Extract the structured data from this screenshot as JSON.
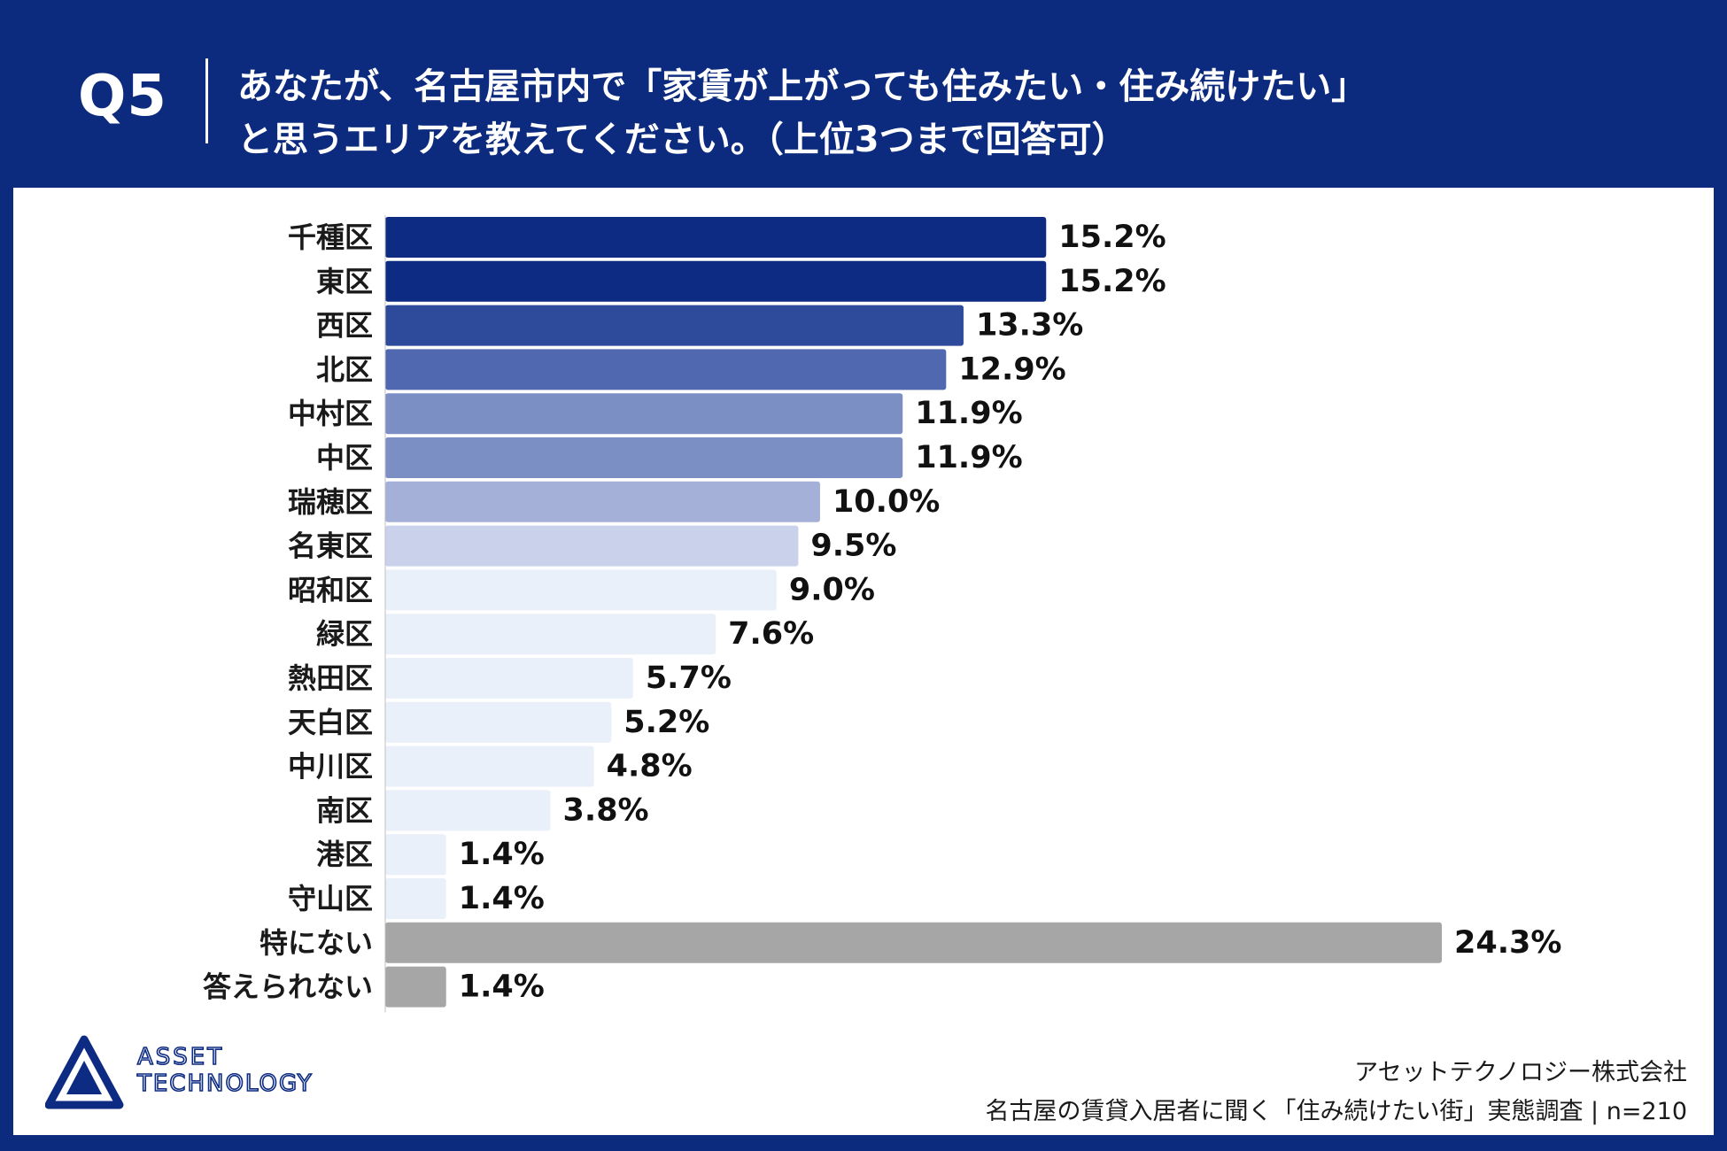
{
  "header": {
    "question_no": "Q5",
    "question_line1": "あなたが、名古屋市内で「家賃が上がっても住みたい・住み続けたい」",
    "question_line2": "と思うエリアを教えてください。（上位3つまで回答可）"
  },
  "logo": {
    "line1": "ASSET",
    "line2": "TECHNOLOGY"
  },
  "footer": {
    "company": "アセットテクノロジー株式会社",
    "survey": "名古屋の賃貸入居者に聞く「住み続けたい街」実態調査 | n=210"
  },
  "chart_data": {
    "type": "bar",
    "orientation": "horizontal",
    "title": "",
    "xlabel": "",
    "ylabel": "",
    "unit": "%",
    "categories": [
      "千種区",
      "東区",
      "西区",
      "北区",
      "中村区",
      "中区",
      "瑞穂区",
      "名東区",
      "昭和区",
      "緑区",
      "熱田区",
      "天白区",
      "中川区",
      "南区",
      "港区",
      "守山区",
      "特にない",
      "答えられない"
    ],
    "values": [
      15.2,
      15.2,
      13.3,
      12.9,
      11.9,
      11.9,
      10.0,
      9.5,
      9.0,
      7.6,
      5.7,
      5.2,
      4.8,
      3.8,
      1.4,
      1.4,
      24.3,
      1.4
    ],
    "value_labels": [
      "15.2%",
      "15.2%",
      "13.3%",
      "12.9%",
      "11.9%",
      "11.9%",
      "10.0%",
      "9.5%",
      "9.0%",
      "7.6%",
      "5.7%",
      "5.2%",
      "4.8%",
      "3.8%",
      "1.4%",
      "1.4%",
      "24.3%",
      "1.4%"
    ],
    "colors": [
      "#0d2b82",
      "#0d2b82",
      "#2e4a9a",
      "#5068b0",
      "#7b8fc4",
      "#7b8fc4",
      "#a4b0d8",
      "#c9d2ea",
      "#eaf0fa",
      "#eaf0fa",
      "#eaf0fa",
      "#eaf0fa",
      "#eaf0fa",
      "#eaf0fa",
      "#eaf0fa",
      "#eaf0fa",
      "#a6a6a6",
      "#a6a6a6"
    ],
    "xlim": [
      0,
      24.3
    ],
    "grid": false,
    "legend": "none"
  }
}
